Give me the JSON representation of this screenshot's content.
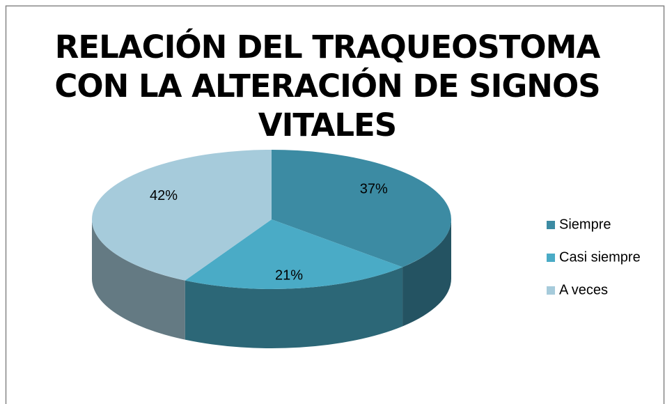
{
  "chart_data": {
    "type": "pie3d",
    "title": "RELACIÓN DEL TRAQUEOSTOMA CON LA ALTERACIÓN DE SIGNOS VITALES",
    "categories": [
      "Siempre",
      "Casi siempre",
      "A veces"
    ],
    "values": [
      37,
      21,
      42
    ],
    "value_labels": [
      "37%",
      "21%",
      "42%"
    ],
    "colors": [
      "#3c8ba3",
      "#4aabc6",
      "#a6cbdb"
    ],
    "legend": "right"
  }
}
